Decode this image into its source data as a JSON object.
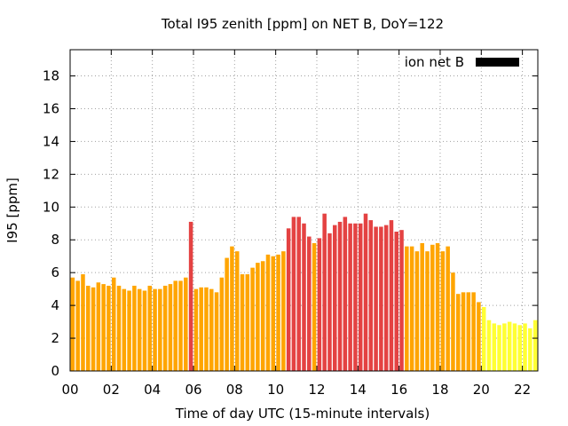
{
  "chart_data": {
    "type": "bar",
    "title": "Total I95 zenith [ppm] on NET B, DoY=122",
    "xlabel": "Time of day UTC (15-minute intervals)",
    "ylabel": "I95 [ppm]",
    "legend_label": "ion net B",
    "legend_position": "top-right",
    "grid": true,
    "xlim": [
      0,
      22.75
    ],
    "ylim": [
      0,
      19.6
    ],
    "x_ticks": [
      "00",
      "02",
      "04",
      "06",
      "08",
      "10",
      "12",
      "14",
      "16",
      "18",
      "20",
      "22"
    ],
    "y_ticks": [
      "0",
      "2",
      "4",
      "6",
      "8",
      "10",
      "12",
      "14",
      "16",
      "18"
    ],
    "interval_hours": 0.25,
    "values": [
      5.7,
      5.5,
      5.9,
      5.2,
      5.1,
      5.4,
      5.3,
      5.2,
      5.7,
      5.2,
      5.0,
      4.9,
      5.2,
      5.0,
      4.9,
      5.2,
      5.0,
      5.0,
      5.2,
      5.3,
      5.5,
      5.5,
      5.7,
      9.1,
      5.0,
      5.1,
      5.1,
      5.0,
      4.8,
      5.7,
      6.9,
      7.6,
      7.3,
      5.9,
      5.9,
      6.3,
      6.6,
      6.7,
      7.1,
      7.0,
      7.1,
      7.3,
      8.7,
      9.4,
      9.4,
      9.0,
      8.2,
      7.8,
      8.1,
      9.6,
      8.4,
      8.9,
      9.1,
      9.4,
      9.0,
      9.0,
      9.0,
      9.6,
      9.2,
      8.8,
      8.8,
      8.9,
      9.2,
      8.5,
      8.6,
      7.6,
      7.6,
      7.3,
      7.8,
      7.3,
      7.7,
      7.8,
      7.3,
      7.6,
      6.0,
      4.7,
      4.8,
      4.8,
      4.8,
      4.2,
      3.9,
      3.1,
      2.9,
      2.8,
      2.9,
      3.0,
      2.9,
      2.8,
      2.9,
      2.6,
      3.1,
      3.4
    ],
    "color_scale": [
      {
        "max": 4.0,
        "color": "#ffff33"
      },
      {
        "max": 8.0,
        "color": "#ffa500"
      },
      {
        "max": 99,
        "color": "#e44242"
      }
    ],
    "legend_swatch_color": "#000000"
  }
}
